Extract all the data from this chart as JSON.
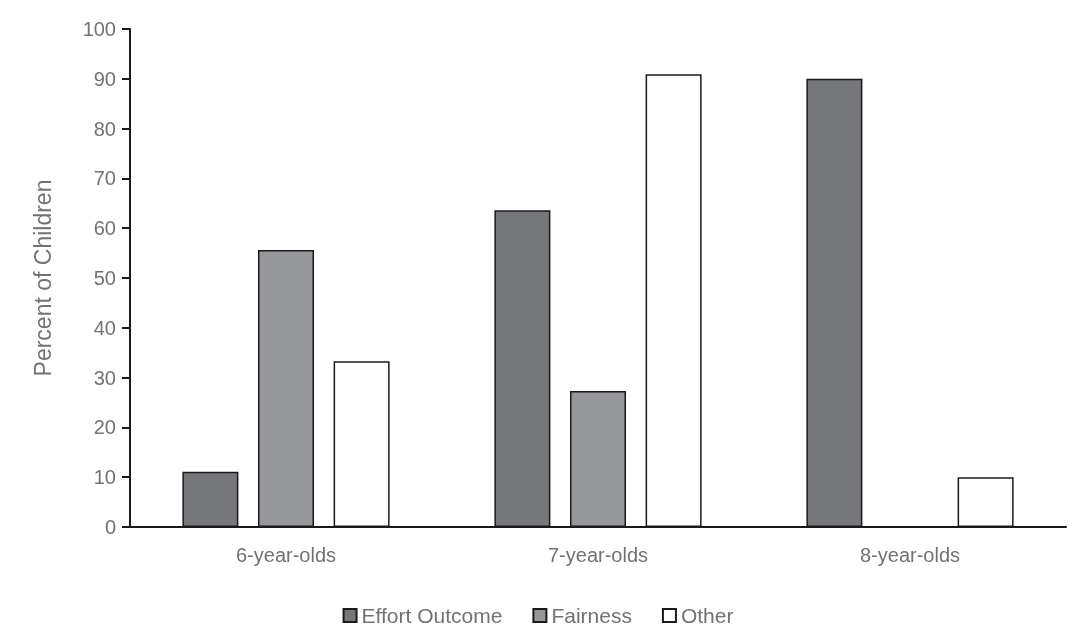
{
  "chart_data": {
    "type": "bar",
    "ylabel": "Percent of Children",
    "categories": [
      "6-year-olds",
      "7-year-olds",
      "8-year-olds"
    ],
    "series": [
      {
        "name": "Effort Outcome",
        "color": "#76777b",
        "values": [
          11.1,
          63.6,
          90
        ]
      },
      {
        "name": "Fairness",
        "color": "#96979b",
        "values": [
          55.6,
          27.3,
          0
        ]
      },
      {
        "name": "Other",
        "color": "#ffffff",
        "values": [
          33.3,
          90.9,
          10
        ]
      }
    ],
    "ylim": [
      0,
      100
    ],
    "yticks": [
      0,
      10,
      20,
      30,
      40,
      50,
      60,
      70,
      80,
      90,
      100
    ],
    "grid": false,
    "legend": "bottom"
  }
}
